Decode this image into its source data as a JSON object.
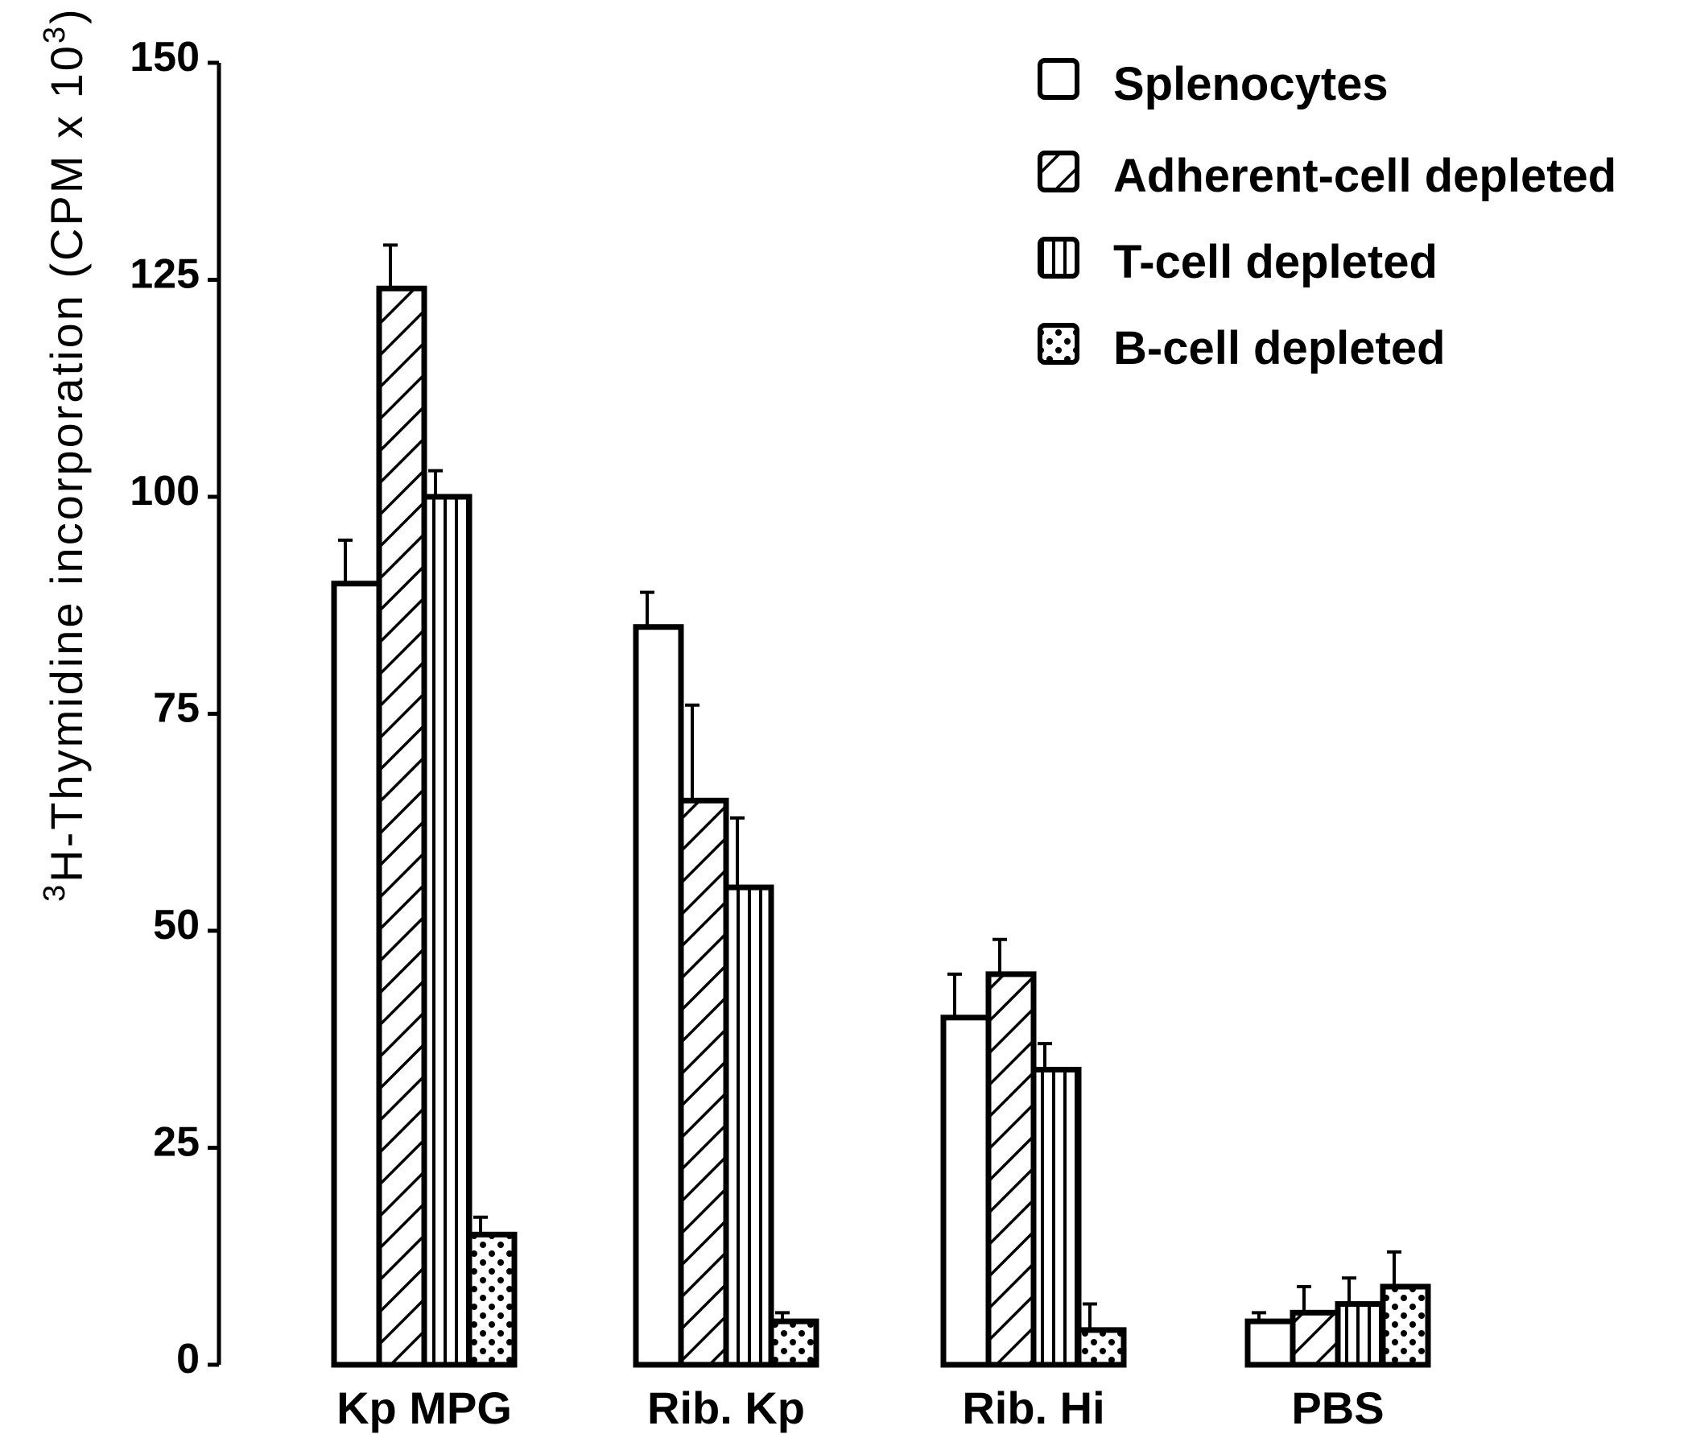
{
  "chart_data": {
    "type": "bar",
    "title": "",
    "xlabel": "",
    "ylabel": {
      "superscript": "3",
      "text": "H-Thymidine incorporation (CPM x 10",
      "exponent": "3",
      "close": ")"
    },
    "ylim": [
      0,
      150
    ],
    "yticks": [
      "0",
      "25",
      "50",
      "75",
      "100",
      "125",
      "150"
    ],
    "categories": [
      "Kp MPG",
      "Rib. Kp",
      "Rib. Hi",
      "PBS"
    ],
    "series": [
      {
        "name": "Splenocytes",
        "pattern": "open",
        "values": [
          90,
          85,
          40,
          5
        ],
        "errors": [
          5,
          4,
          5,
          1
        ]
      },
      {
        "name": "Adherent-cell depleted",
        "pattern": "diagonal",
        "values": [
          124,
          65,
          45,
          6
        ],
        "errors": [
          5,
          11,
          4,
          3
        ]
      },
      {
        "name": "T-cell depleted",
        "pattern": "vertical",
        "values": [
          100,
          55,
          34,
          7
        ],
        "errors": [
          3,
          8,
          3,
          3
        ]
      },
      {
        "name": "B-cell depleted",
        "pattern": "dotted",
        "values": [
          15,
          5,
          4,
          9
        ],
        "errors": [
          2,
          1,
          3,
          4
        ]
      }
    ],
    "legend_position": "top-right",
    "grid": false
  }
}
